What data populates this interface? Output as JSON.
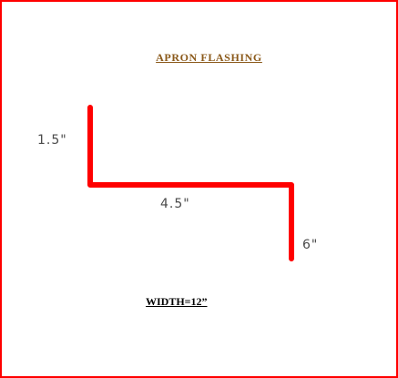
{
  "diagram": {
    "title": "APRON  FLASHING",
    "dimensions": {
      "left": "1.5\"",
      "middle": "4.5\"",
      "right": "6\""
    },
    "width_label": "WIDTH=12”",
    "colors": {
      "border": "#ff0000",
      "profile": "#ff0000",
      "title": "#8b5a1b",
      "dimension_text": "#4a4a4a",
      "width_text": "#000000"
    }
  }
}
